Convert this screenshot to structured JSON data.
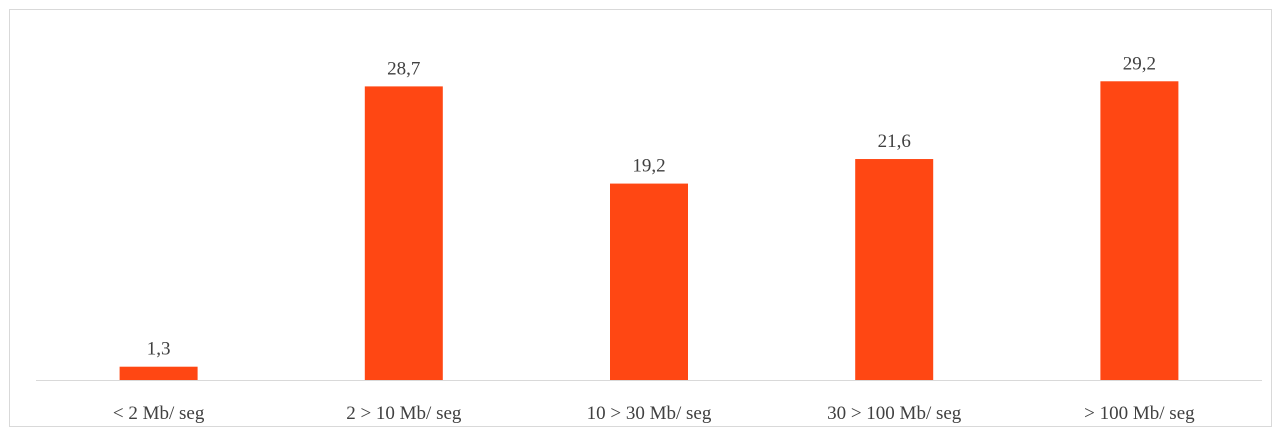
{
  "chart_data": {
    "type": "bar",
    "title": "",
    "xlabel": "",
    "ylabel": "",
    "categories": [
      "< 2 Mb/ seg",
      "2 > 10 Mb/ seg",
      "10 > 30 Mb/ seg",
      "30 > 100 Mb/ seg",
      "> 100 Mb/ seg"
    ],
    "values": [
      1.3,
      28.7,
      19.2,
      21.6,
      29.2
    ],
    "value_labels": [
      "1,3",
      "28,7",
      "19,2",
      "21,6",
      "29,2"
    ],
    "ylim": [
      0,
      34
    ],
    "grid": false,
    "legend": "none",
    "bar_color": "#ff4713",
    "axis_color": "#d9d9d9",
    "label_color": "#404040"
  }
}
